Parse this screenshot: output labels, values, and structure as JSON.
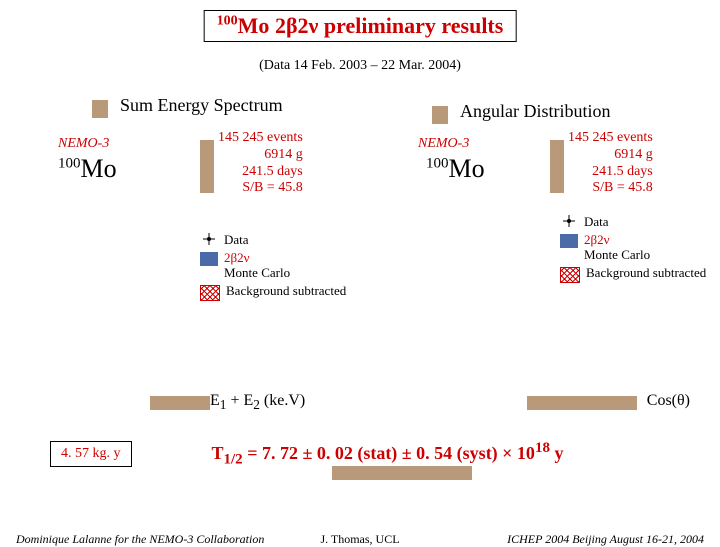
{
  "title": {
    "isotope_sup": "100",
    "isotope": "Mo",
    "decay": "2β2ν",
    "suffix": "preliminary results"
  },
  "subtitle": "(Data  14 Feb. 2003 –  22 Mar. 2004)",
  "panels": {
    "left": {
      "label": "Sum Energy Spectrum",
      "nemo": "NEMO-3",
      "isotope_sup": "100",
      "isotope": "Mo",
      "stats": {
        "l1": "145 245  events",
        "l2": "6914 g",
        "l3": "241.5 days",
        "l4": "S/B = 45.8"
      },
      "legend": {
        "data": "Data",
        "mc_decay": "2β2ν",
        "mc": "Monte Carlo",
        "bg": "Background subtracted"
      },
      "axis_html": "E<sub>1</sub> + E<sub>2</sub>  (ke.V)"
    },
    "right": {
      "label": "Angular Distribution",
      "nemo": "NEMO-3",
      "isotope_sup": "100",
      "isotope": "Mo",
      "stats": {
        "l1": "145 245  events",
        "l2": "6914 g",
        "l3": "241.5 days",
        "l4": "S/B = 45.8"
      },
      "legend": {
        "data": "Data",
        "mc_decay": "2β2ν",
        "mc": "Monte Carlo",
        "bg": "Background subtracted"
      },
      "axis_html": "Cos(θ)"
    }
  },
  "result": {
    "kgy": "4. 57 kg. y",
    "thalf_html": "T<sub>1/2</sub> =  7. 72 ± 0. 02 (stat) ± 0. 54 (syst) × 10<sup>18</sup> y"
  },
  "footer": {
    "left": "Dominique Lalanne for the NEMO-3 Collaboration",
    "center": "J. Thomas, UCL",
    "right": "ICHEP 2004 Beijing August 16-21, 2004"
  },
  "colors": {
    "accent": "#cc0000",
    "shadow": "#b89a7a",
    "series_blue": "#4a6ba8"
  }
}
